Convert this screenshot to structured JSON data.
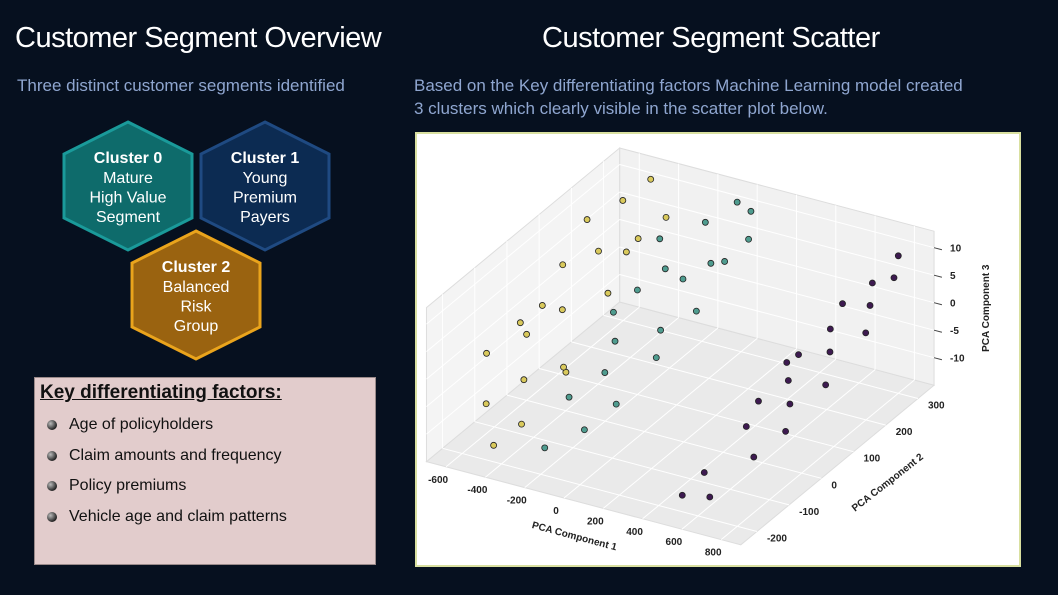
{
  "left": {
    "title": "Customer  Segment Overview",
    "subtitle": "Three distinct customer segments identified",
    "clusters": [
      {
        "title": "Cluster 0",
        "lines": [
          "Mature",
          "High Value",
          "Segment"
        ]
      },
      {
        "title": "Cluster 1",
        "lines": [
          "Young",
          "Premium",
          "Payers"
        ]
      },
      {
        "title": "Cluster 2",
        "lines": [
          "Balanced",
          "Risk",
          "Group"
        ]
      }
    ],
    "factors": {
      "heading": "Key differentiating factors:",
      "items": [
        "Age of policyholders",
        "Claim amounts and frequency",
        "Policy premiums",
        "Vehicle age and claim patterns"
      ]
    }
  },
  "right": {
    "title": "Customer Segment Scatter",
    "description": "Based on the Key differentiating factors Machine Learning model created 3 clusters which clearly visible in the scatter plot below."
  },
  "chart_data": {
    "type": "scatter3d",
    "xlabel": "PCA Component 1",
    "ylabel": "PCA Component 2",
    "zlabel": "PCA Component 3",
    "xlim": [
      -700,
      900
    ],
    "ylim": [
      -250,
      350
    ],
    "zlim": [
      -15,
      13
    ],
    "xticks": [
      -600,
      -400,
      -200,
      0,
      200,
      400,
      600,
      800
    ],
    "yticks": [
      -200,
      -100,
      0,
      100,
      200,
      300
    ],
    "zticks": [
      -10,
      -5,
      0,
      5,
      10
    ],
    "grid": true,
    "series": [
      {
        "color": "#d9c95c",
        "x": [
          -620,
          -580,
          -550,
          -600,
          -520,
          -480,
          -450,
          -500,
          -420,
          -400,
          -380,
          -560,
          -460,
          -350,
          -330,
          -300,
          -640,
          -440,
          -360,
          -520
        ],
        "y": [
          200,
          100,
          -50,
          0,
          250,
          150,
          -100,
          50,
          200,
          0,
          -150,
          -150,
          300,
          100,
          -50,
          250,
          -100,
          -200,
          200,
          0
        ],
        "z": [
          8,
          5,
          2,
          -3,
          10,
          6,
          -5,
          0,
          4,
          -8,
          -10,
          -8,
          12,
          2,
          -4,
          9,
          -2,
          -12,
          7,
          3
        ]
      },
      {
        "color": "#4f9c8f",
        "x": [
          -250,
          -200,
          -150,
          -220,
          -100,
          -50,
          0,
          -180,
          -120,
          50,
          80,
          100,
          -60,
          20,
          -240,
          120,
          -20,
          60,
          -140,
          10
        ],
        "y": [
          200,
          100,
          0,
          -100,
          250,
          150,
          50,
          -200,
          -50,
          300,
          200,
          100,
          -150,
          -100,
          50,
          250,
          300,
          0,
          150,
          200
        ],
        "z": [
          8,
          4,
          0,
          -6,
          10,
          5,
          1,
          -10,
          -3,
          11,
          7,
          3,
          -8,
          -5,
          2,
          9,
          12,
          -1,
          6,
          6
        ]
      },
      {
        "color": "#3d1a50",
        "x": [
          550,
          600,
          650,
          700,
          750,
          800,
          580,
          620,
          680,
          720,
          780,
          820,
          860,
          520,
          660,
          740,
          800,
          840,
          880,
          560
        ],
        "y": [
          -150,
          -50,
          50,
          150,
          250,
          300,
          0,
          100,
          200,
          -100,
          100,
          200,
          250,
          -200,
          -200,
          0,
          -50,
          50,
          150,
          100
        ],
        "z": [
          -10,
          -6,
          -2,
          3,
          7,
          10,
          -4,
          0,
          5,
          -8,
          2,
          6,
          9,
          -12,
          -11,
          -3,
          -5,
          -1,
          4,
          -2
        ]
      }
    ]
  }
}
